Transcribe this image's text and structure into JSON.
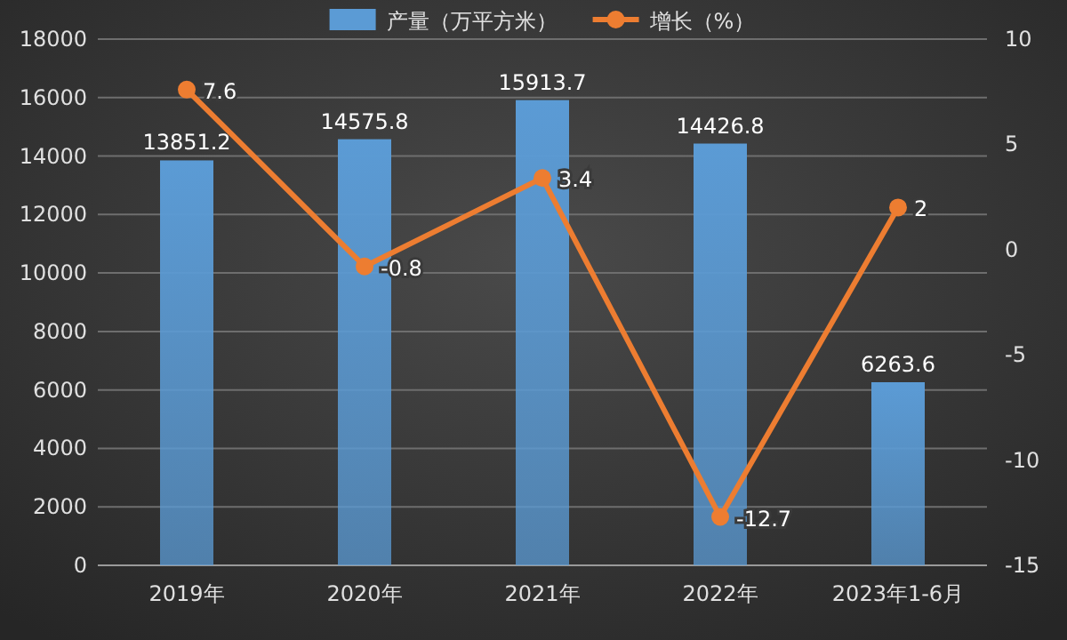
{
  "chart_data": {
    "type": "bar",
    "categories": [
      "2019年",
      "2020年",
      "2021年",
      "2022年",
      "2023年1-6月"
    ],
    "series": [
      {
        "name": "产量（万平方米）",
        "color": "#5b9bd5",
        "values": [
          13851.2,
          14575.8,
          15913.7,
          14426.8,
          6263.6
        ]
      },
      {
        "name": "增长（%）",
        "type": "line",
        "axis": "y2",
        "color": "#ed7d31",
        "marker": "circle",
        "values": [
          7.6,
          -0.8,
          3.4,
          -12.7,
          2
        ]
      }
    ],
    "ylim": [
      0,
      18000
    ],
    "yticks": [
      0,
      2000,
      4000,
      6000,
      8000,
      10000,
      12000,
      14000,
      16000,
      18000
    ],
    "y2lim": [
      -15,
      10
    ],
    "y2ticks": [
      -15,
      -10,
      -5,
      0,
      5,
      10
    ],
    "grid": "y",
    "legend": "top",
    "data_labels": true
  }
}
